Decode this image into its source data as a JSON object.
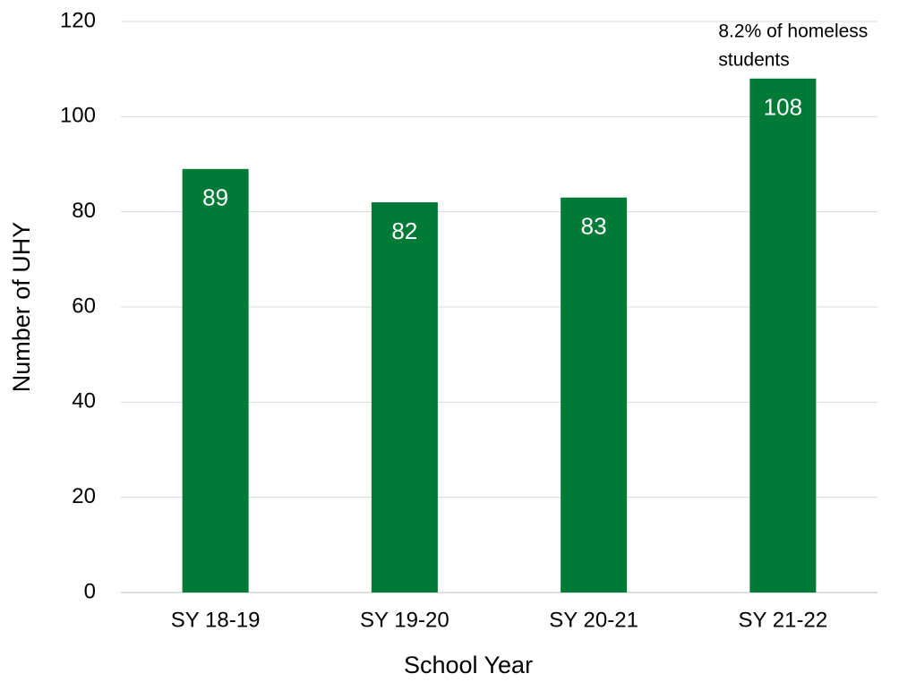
{
  "chart_data": {
    "type": "bar",
    "x_label": "School Year",
    "y_label": "Number of UHY",
    "categories": [
      "SY 18-19",
      "SY 19-20",
      "SY 20-21",
      "SY 21-22"
    ],
    "values": [
      89,
      82,
      83,
      108
    ],
    "color": "#007a37",
    "ylim": [
      0,
      120
    ],
    "yticks": [
      0,
      20,
      40,
      60,
      80,
      100,
      120
    ],
    "grid": true,
    "annotation": {
      "category_index": 3,
      "lines": [
        "8.2% of homeless",
        "students"
      ]
    }
  }
}
